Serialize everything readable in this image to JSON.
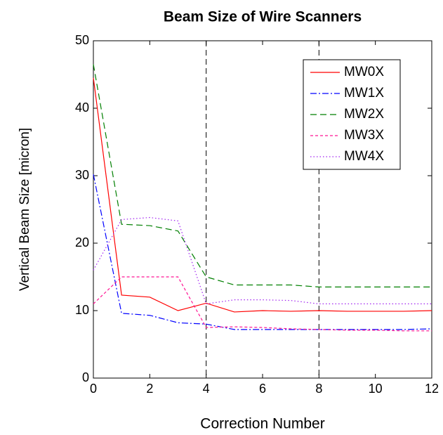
{
  "chart_data": {
    "type": "line",
    "title": "Beam Size of Wire Scanners",
    "xlabel": "Correction Number",
    "ylabel": "Vertical Beam Size [micron]",
    "x": [
      0,
      1,
      2,
      3,
      4,
      5,
      6,
      7,
      8,
      9,
      10,
      11,
      12
    ],
    "series": [
      {
        "name": "MW0X",
        "color": "#ff0000",
        "dash": "solid",
        "values": [
          44.5,
          12.3,
          12.0,
          10.0,
          11.1,
          9.8,
          10.0,
          9.9,
          10.0,
          9.9,
          9.9,
          9.9,
          10.0
        ]
      },
      {
        "name": "MW1X",
        "color": "#0000ff",
        "dash": "dashdot",
        "values": [
          30.2,
          9.6,
          9.3,
          8.2,
          8.0,
          7.2,
          7.2,
          7.2,
          7.2,
          7.2,
          7.2,
          7.2,
          7.3
        ]
      },
      {
        "name": "MW2X",
        "color": "#007f00",
        "dash": "dashed",
        "values": [
          46.5,
          22.8,
          22.6,
          21.8,
          15.0,
          13.8,
          13.8,
          13.8,
          13.5,
          13.5,
          13.5,
          13.5,
          13.5
        ]
      },
      {
        "name": "MW3X",
        "color": "#ff1493",
        "dash": "shortdash",
        "values": [
          11.0,
          15.0,
          15.0,
          15.0,
          7.5,
          7.6,
          7.5,
          7.3,
          7.2,
          7.1,
          7.1,
          7.0,
          7.0
        ]
      },
      {
        "name": "MW4X",
        "color": "#a020f0",
        "dash": "dotted",
        "values": [
          16.0,
          23.5,
          23.8,
          23.3,
          11.0,
          11.6,
          11.6,
          11.5,
          11.0,
          11.0,
          11.0,
          11.0,
          11.0
        ]
      }
    ],
    "vlines": [
      4,
      8
    ],
    "xlim": [
      0,
      12
    ],
    "xticks": [
      0,
      2,
      4,
      6,
      8,
      10,
      12
    ],
    "ylim": [
      0,
      50
    ],
    "yticks": [
      0,
      10,
      20,
      30,
      40,
      50
    ],
    "legend": "upper right"
  }
}
